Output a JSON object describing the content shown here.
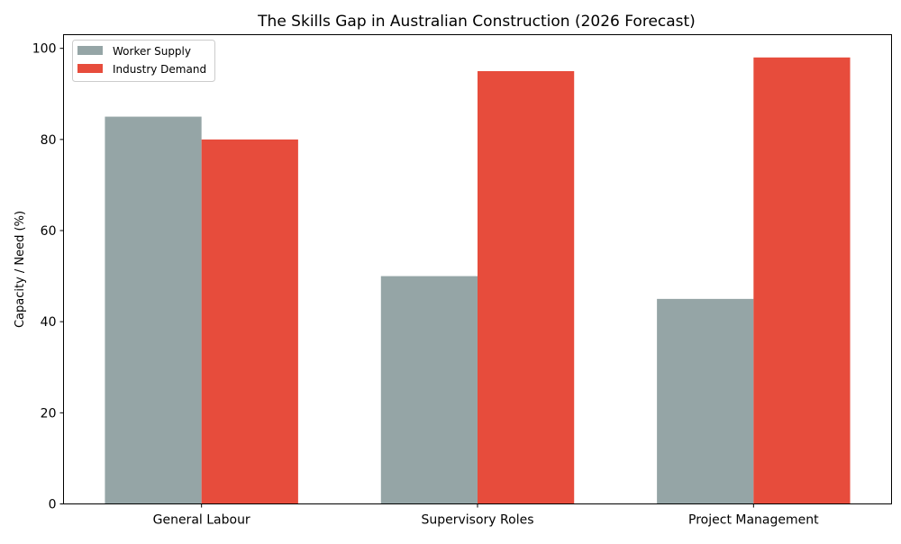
{
  "chart_data": {
    "type": "bar",
    "title": "The Skills Gap in Australian Construction (2026 Forecast)",
    "xlabel": "",
    "ylabel": "Capacity / Need (%)",
    "categories": [
      "General Labour",
      "Supervisory Roles",
      "Project Management"
    ],
    "series": [
      {
        "name": "Worker Supply",
        "values": [
          85,
          50,
          45
        ],
        "color": "#95a5a6"
      },
      {
        "name": "Industry Demand",
        "values": [
          80,
          95,
          98
        ],
        "color": "#e74c3c"
      }
    ],
    "ylim": [
      0,
      103
    ],
    "yticks": [
      0,
      20,
      40,
      60,
      80,
      100
    ],
    "grid": false,
    "legend": "top-left"
  }
}
